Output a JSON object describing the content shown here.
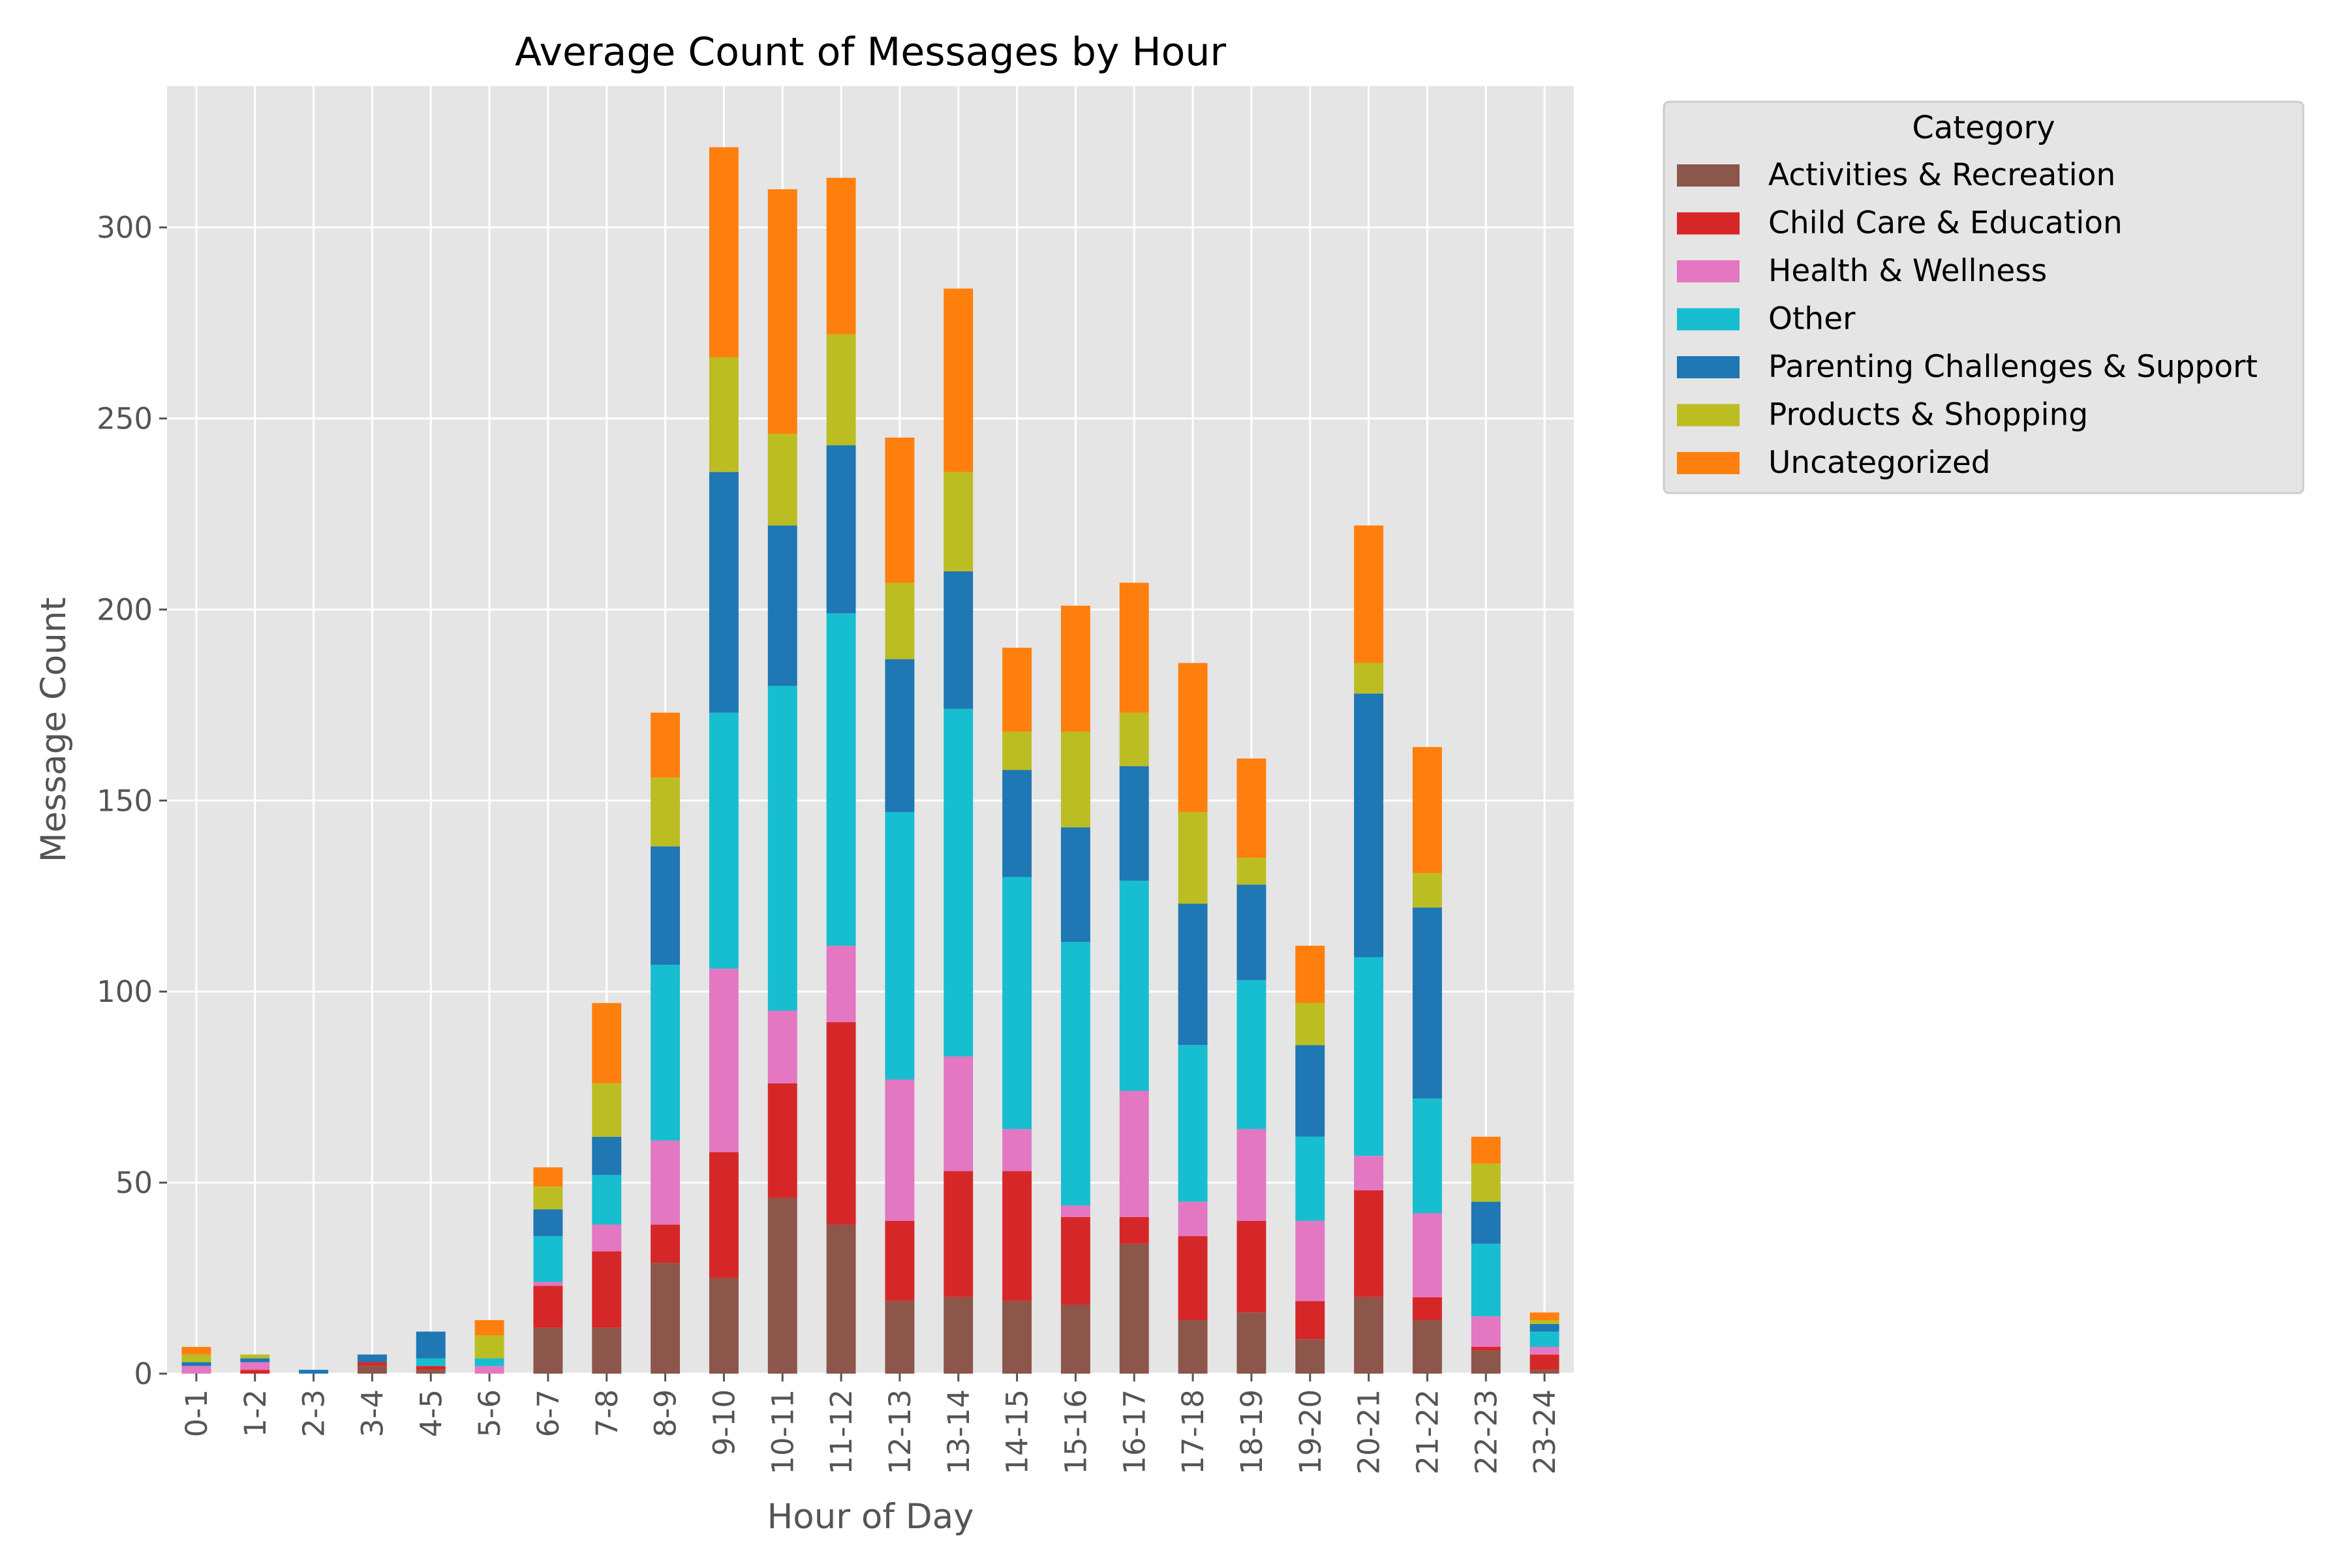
{
  "chart_data": {
    "type": "bar",
    "stacked": true,
    "title": "Average Count of Messages by Hour",
    "xlabel": "Hour of Day",
    "ylabel": "Message Count",
    "ylim": [
      0,
      337
    ],
    "yticks": [
      0,
      50,
      100,
      150,
      200,
      250,
      300
    ],
    "grid": true,
    "legend": {
      "title": "Category",
      "placement": "outside-top-right"
    },
    "categories": [
      "0-1",
      "1-2",
      "2-3",
      "3-4",
      "4-5",
      "5-6",
      "6-7",
      "7-8",
      "8-9",
      "9-10",
      "10-11",
      "11-12",
      "12-13",
      "13-14",
      "14-15",
      "15-16",
      "16-17",
      "17-18",
      "18-19",
      "19-20",
      "20-21",
      "21-22",
      "22-23",
      "23-24"
    ],
    "series": [
      {
        "name": "Activities & Recreation",
        "color": "#8c564b",
        "values": [
          0,
          0,
          0,
          2,
          1,
          0,
          12,
          12,
          29,
          25,
          46,
          39,
          19,
          20,
          19,
          18,
          34,
          14,
          16,
          9,
          20,
          14,
          6,
          1
        ]
      },
      {
        "name": "Child Care & Education",
        "color": "#d62728",
        "values": [
          0,
          1,
          0,
          1,
          1,
          0,
          11,
          20,
          10,
          33,
          30,
          53,
          21,
          33,
          34,
          23,
          7,
          22,
          24,
          10,
          28,
          6,
          1,
          4
        ]
      },
      {
        "name": "Health & Wellness",
        "color": "#e377c2",
        "values": [
          2,
          2,
          0,
          0,
          0,
          2,
          1,
          7,
          22,
          48,
          19,
          20,
          37,
          30,
          11,
          3,
          33,
          9,
          24,
          21,
          9,
          22,
          8,
          2
        ]
      },
      {
        "name": "Other",
        "color": "#17becf",
        "values": [
          0,
          0,
          0,
          0,
          2,
          2,
          12,
          13,
          46,
          67,
          85,
          87,
          70,
          91,
          66,
          69,
          55,
          41,
          39,
          22,
          52,
          30,
          19,
          4
        ]
      },
      {
        "name": "Parenting Challenges & Support",
        "color": "#1f77b4",
        "values": [
          1,
          1,
          1,
          2,
          7,
          0,
          7,
          10,
          31,
          63,
          42,
          44,
          40,
          36,
          28,
          30,
          30,
          37,
          25,
          24,
          69,
          50,
          11,
          2
        ]
      },
      {
        "name": "Products & Shopping",
        "color": "#bcbd22",
        "values": [
          2,
          1,
          0,
          0,
          0,
          6,
          6,
          14,
          18,
          30,
          24,
          29,
          20,
          26,
          10,
          25,
          14,
          24,
          7,
          11,
          8,
          9,
          10,
          1
        ]
      },
      {
        "name": "Uncategorized",
        "color": "#ff7f0e",
        "values": [
          2,
          0,
          0,
          0,
          0,
          4,
          5,
          21,
          17,
          55,
          64,
          41,
          38,
          48,
          22,
          33,
          34,
          39,
          26,
          15,
          36,
          33,
          7,
          2
        ]
      }
    ]
  }
}
